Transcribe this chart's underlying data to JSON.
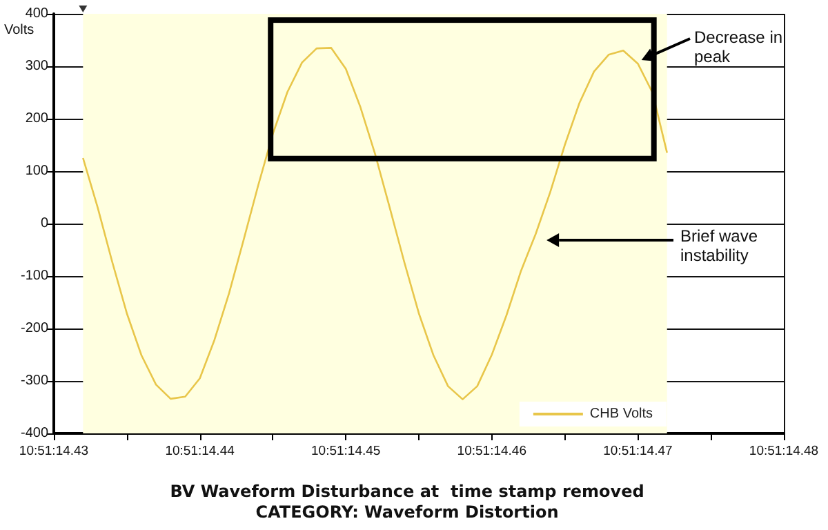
{
  "chart_data": {
    "type": "line",
    "title": "BV Waveform Disturbance at  time stamp removed",
    "subtitle": "CATEGORY: Waveform Distortion",
    "ylabel": "Volts",
    "categories": [
      "10:51:14.43",
      null,
      null,
      null,
      null,
      null,
      null,
      null,
      null,
      null,
      "10:51:14.44",
      null,
      null,
      null,
      null,
      null,
      null,
      null,
      null,
      null,
      "10:51:14.45",
      null,
      null,
      null,
      null,
      null,
      null,
      null,
      null,
      null,
      "10:51:14.46",
      null,
      null,
      null,
      null,
      null,
      null,
      null,
      null,
      null,
      "10:51:14.47",
      null,
      null,
      null,
      null,
      null,
      null,
      null,
      null,
      null,
      "10:51:14.48"
    ],
    "series": [
      {
        "name": "CHB Volts",
        "color": "#e8c64a",
        "values": [
          null,
          null,
          125,
          31,
          -73,
          -171,
          -251,
          -307,
          -334,
          -330,
          -295,
          -222,
          -133,
          -31,
          73,
          171,
          251,
          307,
          334,
          335,
          295,
          222,
          133,
          31,
          -73,
          -171,
          -251,
          -310,
          -335,
          -310,
          -250,
          -175,
          -90,
          -20,
          60,
          150,
          230,
          290,
          322,
          330,
          305,
          250,
          135,
          null,
          null,
          null,
          null,
          null,
          null,
          null,
          null
        ]
      }
    ],
    "ylim": [
      -400,
      400
    ],
    "yticks": [
      -400,
      -300,
      -200,
      -100,
      0,
      100,
      200,
      300,
      400
    ],
    "annotations": [
      "Decrease in peak",
      "Brief wave instability"
    ],
    "grid": true,
    "legend": "bottom right",
    "marker": "none",
    "line_style": "solid"
  }
}
